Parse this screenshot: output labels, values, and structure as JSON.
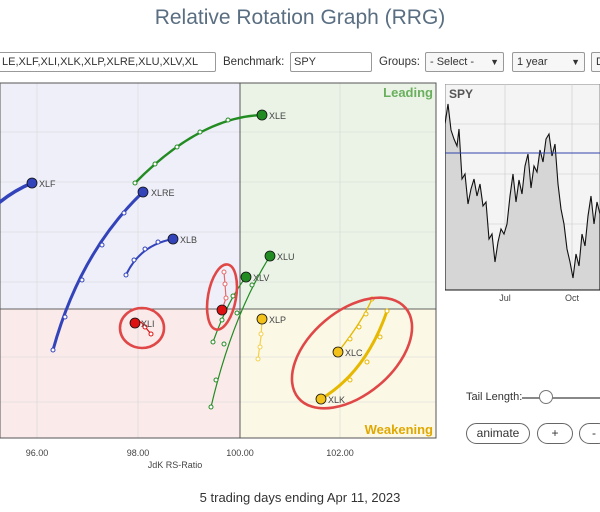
{
  "title": "Relative Rotation Graph (RRG)",
  "toolbar": {
    "symbols": "LE,XLF,XLI,XLK,XLP,XLRE,XLU,XLV,XL",
    "benchmark_label": "Benchmark:",
    "benchmark_value": "SPY",
    "groups_label": "Groups:",
    "groups_value": "- Select -",
    "period_value": "1 year",
    "extra_value": "D"
  },
  "quadrants": {
    "leading": "Leading",
    "weakening": "Weakening"
  },
  "x_axis": {
    "label": "JdK RS-Ratio",
    "ticks": [
      "96.00",
      "98.00",
      "100.00",
      "102.00"
    ]
  },
  "spy_panel": {
    "label": "SPY",
    "x_ticks": [
      "Jul",
      "Oct"
    ]
  },
  "tail_length_label": "Tail Length:",
  "buttons": {
    "animate": "animate",
    "plus": "+",
    "minus": "-"
  },
  "footer": "5 trading days ending Apr 11, 2023",
  "colors": {
    "leading": "#6aaf5e",
    "weakening": "#e0a800",
    "lagging": "#cc3333",
    "improving": "#3344aa",
    "highlight": "#e04848"
  },
  "symbols": [
    {
      "name": "XLE",
      "color": "#228b22"
    },
    {
      "name": "XLF",
      "color": "#3344bb"
    },
    {
      "name": "XLRE",
      "color": "#3344bb"
    },
    {
      "name": "XLB",
      "color": "#3344bb"
    },
    {
      "name": "XLU",
      "color": "#228b22"
    },
    {
      "name": "XLV",
      "color": "#228b22"
    },
    {
      "name": "XLI",
      "color": "#dd1111"
    },
    {
      "name": "XLP",
      "color": "#e6b800"
    },
    {
      "name": "XLC",
      "color": "#e6b800"
    },
    {
      "name": "XLK",
      "color": "#e6b800"
    }
  ]
}
